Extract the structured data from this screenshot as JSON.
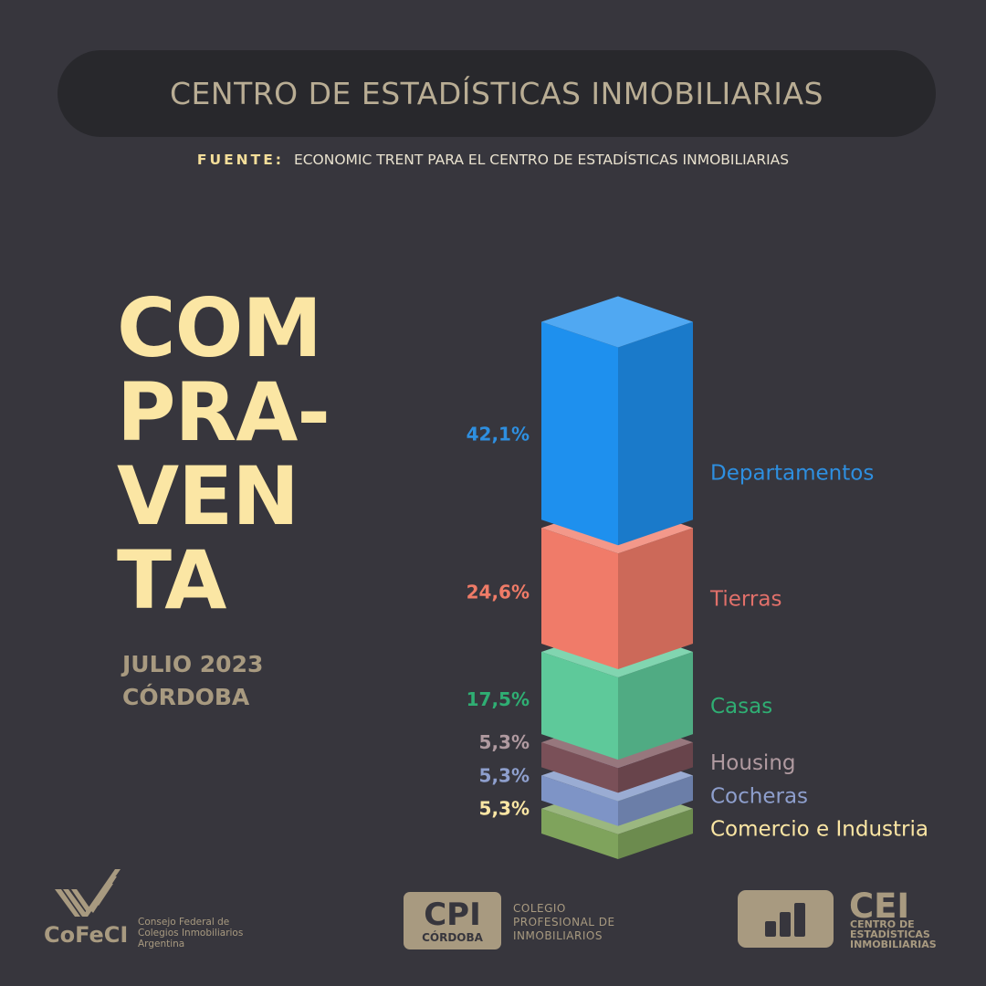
{
  "header": {
    "title": "CENTRO DE ESTADÍSTICAS INMOBILIARIAS",
    "source_label": "FUENTE:",
    "source_text": "ECONOMIC TRENT PARA EL CENTRO DE ESTADÍSTICAS INMOBILIARIAS"
  },
  "headline": {
    "lines": [
      "COM",
      "PRA-",
      "VEN",
      "TA"
    ],
    "date": "JULIO 2023",
    "place": "CÓRDOBA"
  },
  "chart_data": {
    "type": "bar",
    "orientation": "stacked-3d-column",
    "categories": [
      "Departamentos",
      "Tierras",
      "Casas",
      "Housing",
      "Cocheras",
      "Comercio e Industria"
    ],
    "values": [
      42.1,
      24.6,
      17.5,
      5.3,
      5.3,
      5.3
    ],
    "value_labels": [
      "42,1%",
      "24,6%",
      "17,5%",
      "5,3%",
      "5,3%",
      "5,3%"
    ],
    "colors": [
      "#1e90ee",
      "#f07b69",
      "#5ec99a",
      "#7a5058",
      "#7e94c6",
      "#7fa35c"
    ],
    "label_colors": [
      "#2e8fe0",
      "#ef7b67",
      "#2fae73",
      "#b09aa0",
      "#8e9fcd",
      "#fbe6a4"
    ],
    "category_label_colors": [
      "#2e8fe0",
      "#e1706a",
      "#2fae73",
      "#b09aa0",
      "#8e9fcd",
      "#fbe6a4"
    ],
    "unit": "%"
  },
  "footer": {
    "cofeci_name": "CoFeCI",
    "cofeci_sub": [
      "Consejo Federal de",
      "Colegios Inmobiliarios",
      "Argentina"
    ],
    "cpi_main": "CPI",
    "cpi_city": "CÓRDOBA",
    "cpi_text": [
      "COLEGIO",
      "PROFESIONAL DE",
      "INMOBILIARIOS"
    ],
    "cei_main": "CEI",
    "cei_sub": [
      "CENTRO DE",
      "ESTADÍSTICAS",
      "INMOBILIARIAS"
    ],
    "brand_color": "#a89a80"
  }
}
